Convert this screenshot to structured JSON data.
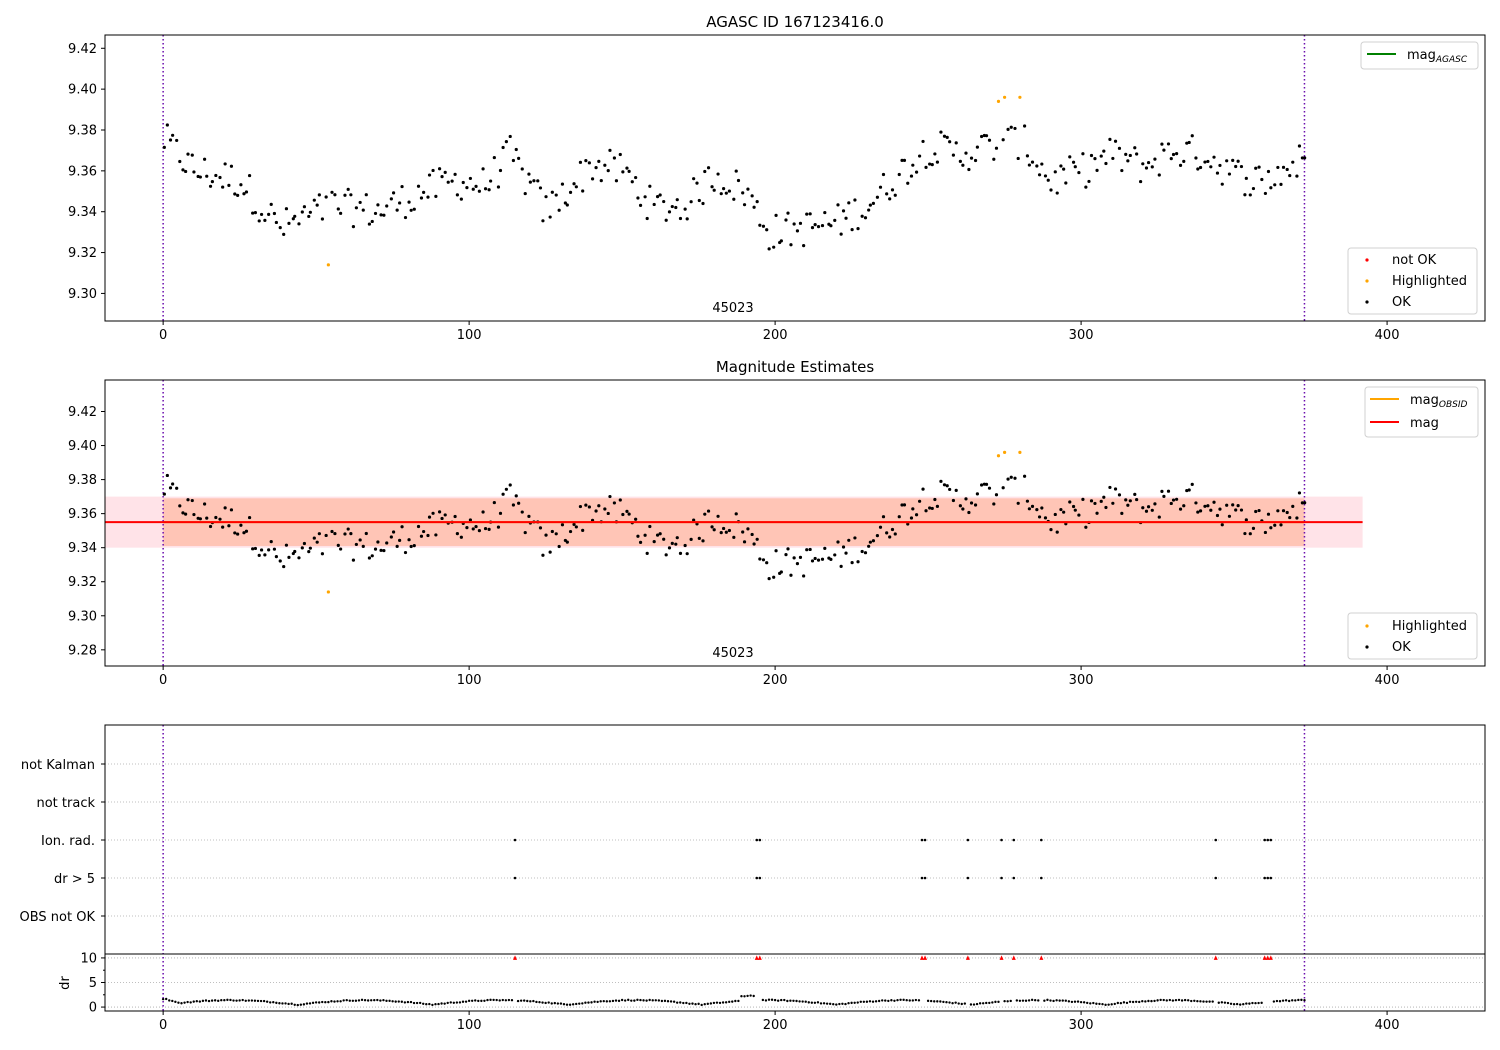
{
  "chart_data": [
    {
      "type": "scatter",
      "title": "AGASC ID 167123416.0",
      "xlim": [
        -19,
        432
      ],
      "ylim": [
        9.2865,
        9.4265
      ],
      "yticks": [
        9.3,
        9.32,
        9.34,
        9.36,
        9.38,
        9.4,
        9.42
      ],
      "xticks": [
        0,
        100,
        200,
        300,
        400
      ],
      "obsid_label": "45023",
      "obsid_boundaries": [
        0,
        373
      ],
      "legend_lines": [
        {
          "label": "mag",
          "sub": "AGASC",
          "color": "#008000"
        }
      ],
      "legend_points": [
        {
          "label": "not OK",
          "color": "#ff0000"
        },
        {
          "label": "Highlighted",
          "color": "#ffa500"
        },
        {
          "label": "OK",
          "color": "#000000"
        }
      ],
      "highlighted_points": [
        [
          54,
          9.314
        ],
        [
          273,
          9.394
        ],
        [
          275,
          9.396
        ],
        [
          280,
          9.396
        ]
      ],
      "series_colors": {
        "ok": "#000000",
        "highlighted": "#ffa500",
        "not_ok": "#ff0000"
      }
    },
    {
      "type": "scatter",
      "title": "Magnitude Estimates",
      "xlim": [
        -19,
        432
      ],
      "ylim": [
        9.2705,
        9.4385
      ],
      "yticks": [
        9.28,
        9.3,
        9.32,
        9.34,
        9.36,
        9.38,
        9.4,
        9.42
      ],
      "xticks": [
        0,
        100,
        200,
        300,
        400
      ],
      "obsid_label": "45023",
      "obsid_boundaries": [
        0,
        373
      ],
      "mag": 9.355,
      "mag_band": [
        9.34,
        9.37
      ],
      "mag_obsid": 9.355,
      "mag_obsid_band": [
        9.341,
        9.369
      ],
      "band_x_range": [
        -19,
        392
      ],
      "legend_lines": [
        {
          "label": "mag",
          "sub": "OBSID",
          "color": "#ffa500"
        },
        {
          "label": "mag",
          "sub": "",
          "color": "#ff0000"
        }
      ],
      "legend_points": [
        {
          "label": "Highlighted",
          "color": "#ffa500"
        },
        {
          "label": "OK",
          "color": "#000000"
        }
      ]
    },
    {
      "type": "scatter",
      "title": "",
      "xlim": [
        -19,
        432
      ],
      "flag_labels": [
        "not Kalman",
        "not track",
        "Ion. rad.",
        "dr > 5",
        "OBS not OK"
      ],
      "flag_ion_rad_x": [
        115,
        194,
        195,
        248,
        249,
        263,
        274,
        278,
        287,
        344,
        360,
        361,
        362
      ],
      "flag_dr5_x": [
        115,
        194,
        195,
        248,
        249,
        263,
        274,
        278,
        287,
        344,
        360,
        361,
        362
      ],
      "dr_ylabel": "dr",
      "dr_yticks": [
        0,
        5,
        10
      ],
      "dr_ylim": [
        -0.8,
        10.8
      ],
      "dr_clipped_x": [
        115,
        194,
        195,
        248,
        249,
        263,
        274,
        278,
        287,
        344,
        360,
        361,
        362
      ],
      "xticks": [
        0,
        100,
        200,
        300,
        400
      ]
    }
  ]
}
